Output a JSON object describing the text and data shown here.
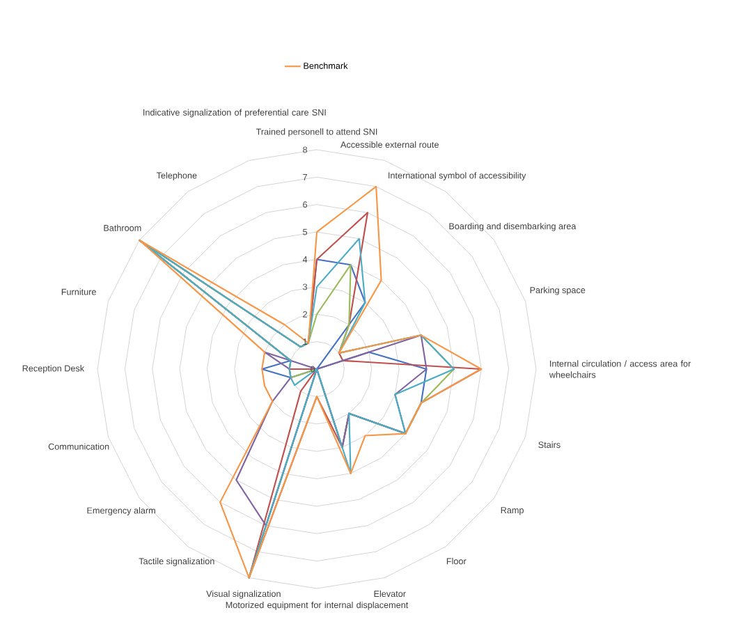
{
  "chart_data": {
    "type": "radar",
    "categories": [
      "Trained personell to attend SNI",
      "Accessible external route",
      "International symbol of accessibility",
      "Boarding and disembarking area",
      "Parking space",
      "Internal circulation / access area for wheelchairs",
      "Stairs",
      "Ramp",
      "Floor",
      "Elevator",
      "Motorized equipment for internal displacement",
      "Visual signalization",
      "Tactile signalization",
      "Emergency alarm",
      "Communication",
      "Reception Desk",
      "Furniture",
      "Bathroom",
      "Telephone",
      "Indicative signalization of preferential care SNI"
    ],
    "series": [
      {
        "color": "#4472c4",
        "values": [
          4,
          4,
          3,
          0,
          2,
          4,
          4,
          4,
          2,
          3,
          0,
          8,
          0,
          0,
          1,
          2,
          1,
          8,
          1,
          1
        ]
      },
      {
        "color": "#c0504d",
        "values": [
          4,
          6,
          2,
          1,
          1,
          6,
          4,
          4,
          2,
          3,
          1,
          8,
          1,
          0,
          0,
          1,
          1,
          8,
          1,
          1
        ]
      },
      {
        "color": "#9bbb59",
        "values": [
          2,
          4,
          2,
          1,
          4,
          5,
          4,
          4,
          2,
          3,
          0,
          8,
          0,
          0,
          1,
          1,
          1,
          8,
          1,
          1
        ]
      },
      {
        "color": "#8064a2",
        "values": [
          0,
          0,
          0,
          0,
          4,
          4,
          3,
          4,
          2,
          3,
          0,
          6,
          5,
          2,
          1,
          1,
          2,
          0,
          0,
          0
        ]
      },
      {
        "color": "#4bacc6",
        "values": [
          3,
          5,
          3,
          1,
          4,
          5,
          3,
          4,
          2,
          4,
          0,
          8,
          0,
          1,
          1,
          1,
          1,
          8,
          1,
          1
        ]
      },
      {
        "name": "Benchmark",
        "color": "#f79646",
        "values": [
          5,
          7,
          4,
          1,
          4,
          6,
          4,
          4,
          3,
          4,
          1,
          8,
          6,
          2,
          2,
          2,
          2,
          8,
          2,
          1
        ]
      }
    ],
    "ylim": [
      0,
      8
    ],
    "yticks": [
      0,
      1,
      2,
      3,
      4,
      5,
      6,
      7,
      8
    ],
    "grid": true,
    "legend": "top",
    "marker": "none"
  }
}
